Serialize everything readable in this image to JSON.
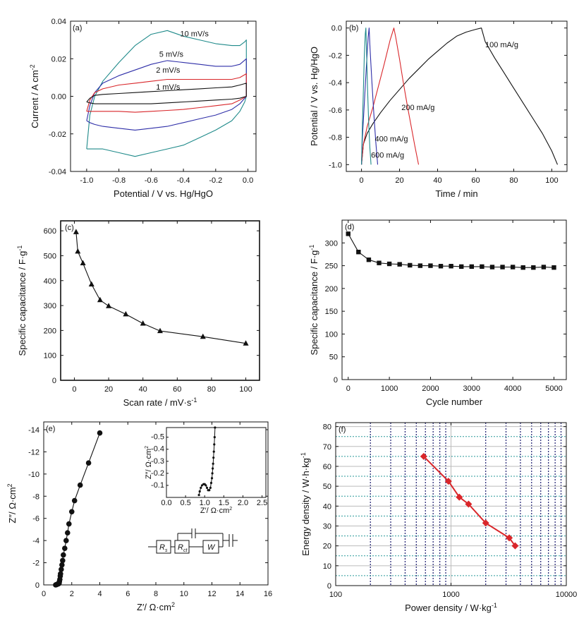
{
  "colors": {
    "black": "#111111",
    "red": "#d9262a",
    "blue": "#2e2ea8",
    "teal": "#1f8a8a",
    "navy": "#1a1a6e",
    "grid_teal": "#2a9a9a",
    "grid_gray": "#bbbbbb"
  },
  "chart_data": [
    {
      "id": "a",
      "type": "line",
      "panel_label": "(a)",
      "xlabel": "Potential / V vs. Hg/HgO",
      "ylabel": "Current / A cm",
      "ylabel_sup": "-2",
      "xlim": [
        -1.1,
        0.05
      ],
      "ylim": [
        -0.04,
        0.04
      ],
      "xticks": [
        -1.0,
        -0.8,
        -0.6,
        -0.4,
        -0.2,
        0.0
      ],
      "xtick_labels": [
        "-1.0",
        "-0.8",
        "-0.6",
        "-0.4",
        "-0.2",
        "0.0"
      ],
      "yticks": [
        -0.04,
        -0.02,
        0.0,
        0.02,
        0.04
      ],
      "ytick_labels": [
        "-0.04",
        "-0.02",
        "0.00",
        "0.02",
        "0.04"
      ],
      "series": [
        {
          "name": "10 mV/s",
          "color": "teal",
          "label_at": [
            -0.42,
            0.032
          ],
          "x": [
            -1.0,
            -0.98,
            -0.95,
            -0.9,
            -0.8,
            -0.7,
            -0.6,
            -0.5,
            -0.4,
            -0.3,
            -0.2,
            -0.1,
            -0.05,
            -0.02,
            -0.01,
            -0.01,
            -0.02,
            -0.05,
            -0.1,
            -0.2,
            -0.3,
            -0.4,
            -0.5,
            -0.6,
            -0.7,
            -0.8,
            -0.9,
            -0.95,
            -0.98,
            -1.0
          ],
          "y": [
            -0.028,
            -0.01,
            0.0,
            0.008,
            0.018,
            0.027,
            0.033,
            0.035,
            0.032,
            0.03,
            0.028,
            0.027,
            0.027,
            0.029,
            0.03,
            0.0,
            -0.003,
            -0.008,
            -0.013,
            -0.018,
            -0.022,
            -0.026,
            -0.028,
            -0.03,
            -0.032,
            -0.03,
            -0.028,
            -0.028,
            -0.028,
            -0.028
          ]
        },
        {
          "name": "5 mV/s",
          "color": "blue",
          "label_at": [
            -0.55,
            0.021
          ],
          "x": [
            -1.0,
            -0.98,
            -0.95,
            -0.9,
            -0.8,
            -0.7,
            -0.6,
            -0.5,
            -0.4,
            -0.3,
            -0.2,
            -0.1,
            -0.05,
            -0.01,
            -0.01,
            -0.05,
            -0.1,
            -0.2,
            -0.3,
            -0.4,
            -0.5,
            -0.6,
            -0.7,
            -0.8,
            -0.9,
            -0.95,
            -0.98,
            -1.0
          ],
          "y": [
            -0.013,
            -0.005,
            0.002,
            0.007,
            0.011,
            0.014,
            0.017,
            0.019,
            0.018,
            0.017,
            0.016,
            0.016,
            0.017,
            0.02,
            0.0,
            -0.004,
            -0.007,
            -0.01,
            -0.012,
            -0.014,
            -0.016,
            -0.017,
            -0.018,
            -0.017,
            -0.016,
            -0.015,
            -0.014,
            -0.013
          ]
        },
        {
          "name": "2 mV/s",
          "color": "red",
          "label_at": [
            -0.57,
            0.0125
          ],
          "x": [
            -1.0,
            -0.98,
            -0.95,
            -0.9,
            -0.8,
            -0.7,
            -0.6,
            -0.5,
            -0.4,
            -0.3,
            -0.2,
            -0.1,
            -0.05,
            -0.01,
            -0.01,
            -0.05,
            -0.1,
            -0.2,
            -0.3,
            -0.4,
            -0.5,
            -0.6,
            -0.7,
            -0.8,
            -0.9,
            -0.95,
            -0.98,
            -1.0
          ],
          "y": [
            -0.008,
            -0.002,
            0.002,
            0.004,
            0.006,
            0.007,
            0.008,
            0.009,
            0.009,
            0.009,
            0.009,
            0.009,
            0.01,
            0.012,
            0.0,
            -0.002,
            -0.004,
            -0.005,
            -0.006,
            -0.007,
            -0.0075,
            -0.008,
            -0.0085,
            -0.008,
            -0.008,
            -0.008,
            -0.008,
            -0.008
          ]
        },
        {
          "name": "1 mV/s",
          "color": "black",
          "label_at": [
            -0.57,
            0.0035
          ],
          "x": [
            -1.0,
            -0.98,
            -0.95,
            -0.9,
            -0.8,
            -0.7,
            -0.6,
            -0.5,
            -0.4,
            -0.3,
            -0.2,
            -0.1,
            -0.05,
            -0.01,
            -0.01,
            -0.05,
            -0.1,
            -0.2,
            -0.3,
            -0.4,
            -0.5,
            -0.6,
            -0.7,
            -0.8,
            -0.9,
            -0.95,
            -0.98,
            -1.0
          ],
          "y": [
            -0.003,
            -0.001,
            0.0005,
            0.001,
            0.0015,
            0.002,
            0.0025,
            0.003,
            0.0035,
            0.004,
            0.0045,
            0.005,
            0.006,
            0.007,
            0.0,
            -0.001,
            -0.0015,
            -0.002,
            -0.0025,
            -0.003,
            -0.0035,
            -0.004,
            -0.004,
            -0.004,
            -0.004,
            -0.004,
            -0.0035,
            -0.003
          ]
        }
      ]
    },
    {
      "id": "b",
      "type": "line",
      "panel_label": "(b)",
      "xlabel": "Time / min",
      "ylabel": "Potential / V vs. Hg/HgO",
      "xlim": [
        -8,
        108
      ],
      "ylim": [
        -1.05,
        0.05
      ],
      "xticks": [
        0,
        20,
        40,
        60,
        80,
        100
      ],
      "xtick_labels": [
        "0",
        "20",
        "40",
        "60",
        "80",
        "100"
      ],
      "yticks": [
        -1.0,
        -0.8,
        -0.6,
        -0.4,
        -0.2,
        0.0
      ],
      "ytick_labels": [
        "-1.0",
        "-0.8",
        "-0.6",
        "-0.4",
        "-0.2",
        "0.0"
      ],
      "series": [
        {
          "name": "100 mA/g",
          "color": "black",
          "label_at": [
            65,
            -0.14
          ],
          "x": [
            0,
            1,
            3,
            6,
            10,
            15,
            20,
            25,
            30,
            35,
            40,
            45,
            50,
            55,
            60,
            63,
            65,
            70,
            75,
            80,
            85,
            90,
            95,
            100,
            103
          ],
          "y": [
            -1.0,
            -0.85,
            -0.77,
            -0.7,
            -0.62,
            -0.53,
            -0.45,
            -0.37,
            -0.3,
            -0.23,
            -0.17,
            -0.11,
            -0.06,
            -0.03,
            -0.01,
            0.0,
            -0.1,
            -0.22,
            -0.33,
            -0.44,
            -0.55,
            -0.66,
            -0.77,
            -0.9,
            -1.0
          ]
        },
        {
          "name": "200 mA/g",
          "color": "red",
          "label_at": [
            21,
            -0.6
          ],
          "x": [
            0,
            1,
            3,
            6,
            9,
            12,
            15,
            17,
            18,
            20,
            22,
            24,
            26,
            28,
            30
          ],
          "y": [
            -1.0,
            -0.85,
            -0.72,
            -0.58,
            -0.42,
            -0.26,
            -0.09,
            0.0,
            -0.07,
            -0.23,
            -0.4,
            -0.56,
            -0.71,
            -0.86,
            -1.0
          ]
        },
        {
          "name": "400 mA/g",
          "color": "blue",
          "label_at": [
            7,
            -0.83
          ],
          "x": [
            0,
            0.5,
            1.5,
            2.5,
            3.5,
            4.0,
            4.5,
            5.5,
            6.5,
            7.5,
            8.5
          ],
          "y": [
            -1.0,
            -0.8,
            -0.55,
            -0.3,
            -0.07,
            0.0,
            -0.15,
            -0.4,
            -0.63,
            -0.83,
            -1.0
          ]
        },
        {
          "name": "600 mA/g",
          "color": "teal",
          "label_at": [
            5,
            -0.95
          ],
          "x": [
            0,
            0.5,
            1.0,
            1.5,
            2.0,
            2.3,
            2.7,
            3.2,
            3.8,
            4.4,
            5.0
          ],
          "y": [
            -1.0,
            -0.7,
            -0.45,
            -0.2,
            -0.04,
            0.0,
            -0.2,
            -0.45,
            -0.7,
            -0.88,
            -1.0
          ]
        }
      ]
    },
    {
      "id": "c",
      "type": "line",
      "panel_label": "(c)",
      "xlabel": "Scan rate / mV·s",
      "xlabel_sup": "-1",
      "ylabel": "Specific capacitance / F·g",
      "ylabel_sup": "-1",
      "xlim": [
        -8,
        108
      ],
      "ylim": [
        0,
        640
      ],
      "xticks": [
        0,
        20,
        40,
        60,
        80,
        100
      ],
      "xtick_labels": [
        "0",
        "20",
        "40",
        "60",
        "80",
        "100"
      ],
      "yticks": [
        0,
        100,
        200,
        300,
        400,
        500,
        600
      ],
      "ytick_labels": [
        "0",
        "100",
        "200",
        "300",
        "400",
        "500",
        "600"
      ],
      "marker": "triangle",
      "series": [
        {
          "name": "",
          "color": "black",
          "x": [
            1,
            2,
            5,
            10,
            15,
            20,
            30,
            40,
            50,
            75,
            100
          ],
          "y": [
            595,
            517,
            470,
            385,
            322,
            298,
            265,
            228,
            198,
            175,
            148
          ]
        }
      ]
    },
    {
      "id": "d",
      "type": "line",
      "panel_label": "(d)",
      "xlabel": "Cycle number",
      "ylabel": "Specific capacitance / F·g",
      "ylabel_sup": "-1",
      "xlim": [
        -150,
        5300
      ],
      "ylim": [
        0,
        350
      ],
      "xticks": [
        0,
        1000,
        2000,
        3000,
        4000,
        5000
      ],
      "xtick_labels": [
        "0",
        "1000",
        "2000",
        "3000",
        "4000",
        "5000"
      ],
      "yticks": [
        0,
        50,
        100,
        150,
        200,
        250,
        300
      ],
      "ytick_labels": [
        "0",
        "50",
        "100",
        "150",
        "200",
        "250",
        "300"
      ],
      "marker": "square",
      "series": [
        {
          "name": "",
          "color": "black",
          "x": [
            0,
            250,
            500,
            750,
            1000,
            1250,
            1500,
            1750,
            2000,
            2250,
            2500,
            2750,
            3000,
            3250,
            3500,
            3750,
            4000,
            4250,
            4500,
            4750,
            5000
          ],
          "y": [
            320,
            280,
            263,
            256,
            254,
            253,
            251,
            250,
            250,
            249,
            249,
            248,
            248,
            248,
            247,
            247,
            247,
            246,
            246,
            247,
            246
          ]
        }
      ]
    },
    {
      "id": "e",
      "type": "scatter",
      "panel_label": "(e)",
      "xlabel": "Z′/ Ω·cm",
      "xlabel_sup": "2",
      "ylabel": "Z″/ Ω·cm",
      "ylabel_sup": "2",
      "xlim": [
        0,
        16
      ],
      "ylim": [
        0,
        -14.7
      ],
      "xticks": [
        0,
        2,
        4,
        6,
        8,
        10,
        12,
        14,
        16
      ],
      "xtick_labels": [
        "0",
        "2",
        "4",
        "6",
        "8",
        "10",
        "12",
        "14",
        "16"
      ],
      "yticks": [
        0,
        -2,
        -4,
        -6,
        -8,
        -10,
        -12,
        -14
      ],
      "ytick_labels": [
        "0",
        "-2",
        "-4",
        "-6",
        "-8",
        "-10",
        "-12",
        "-14"
      ],
      "marker": "circle",
      "series": [
        {
          "name": "",
          "color": "black",
          "x": [
            0.85,
            0.9,
            0.95,
            1.0,
            1.05,
            1.1,
            1.12,
            1.15,
            1.18,
            1.2,
            1.25,
            1.3,
            1.35,
            1.4,
            1.5,
            1.6,
            1.7,
            1.8,
            2.0,
            2.2,
            2.6,
            3.2,
            4.0
          ],
          "y": [
            0.0,
            -0.02,
            -0.05,
            -0.08,
            -0.1,
            -0.15,
            -0.3,
            -0.5,
            -0.8,
            -1.0,
            -1.4,
            -1.8,
            -2.2,
            -2.7,
            -3.3,
            -4.0,
            -4.7,
            -5.5,
            -6.6,
            -7.6,
            -9.0,
            -11.0,
            -13.7
          ]
        }
      ],
      "inset": {
        "xlabel": "Z′/ Ω·cm",
        "xlabel_sup": "2",
        "ylabel": "Z″/ Ω·cm",
        "ylabel_sup": "2",
        "xlim": [
          0,
          2.6
        ],
        "ylim": [
          0,
          -0.58
        ],
        "xticks": [
          0.0,
          0.5,
          1.0,
          1.5,
          2.0,
          2.5
        ],
        "xtick_labels": [
          "0.0",
          "0.5",
          "1.0",
          "1.5",
          "2.0",
          "2.5"
        ],
        "yticks": [
          -0.1,
          -0.2,
          -0.3,
          -0.4,
          -0.5
        ],
        "ytick_labels": [
          "-0.1",
          "-0.2",
          "-0.3",
          "-0.4",
          "-0.5"
        ],
        "x": [
          0.85,
          0.87,
          0.9,
          0.93,
          0.97,
          1.0,
          1.03,
          1.06,
          1.09,
          1.12,
          1.15,
          1.17,
          1.19,
          1.2,
          1.21,
          1.22,
          1.23,
          1.24,
          1.25,
          1.26,
          1.27
        ],
        "y": [
          -0.02,
          -0.05,
          -0.08,
          -0.1,
          -0.11,
          -0.11,
          -0.1,
          -0.08,
          -0.06,
          -0.06,
          -0.08,
          -0.12,
          -0.16,
          -0.2,
          -0.24,
          -0.28,
          -0.33,
          -0.38,
          -0.44,
          -0.5,
          -0.58
        ]
      },
      "circuit": {
        "labels": [
          "R",
          "R",
          "W"
        ],
        "subscripts": [
          "s",
          "ct",
          ""
        ]
      }
    },
    {
      "id": "f",
      "type": "line",
      "panel_label": "(f)",
      "xlabel": "Power density / W·kg",
      "xlabel_sup": "-1",
      "ylabel": "Energy density / W·h·kg",
      "ylabel_sup": "-1",
      "xscale": "log",
      "xlim": [
        100,
        10000
      ],
      "ylim": [
        0,
        82
      ],
      "grid": true,
      "xticks": [
        100,
        1000,
        10000
      ],
      "xtick_labels": [
        "100",
        "1000",
        "10000"
      ],
      "yticks": [
        0,
        10,
        20,
        30,
        40,
        50,
        60,
        70,
        80
      ],
      "ytick_labels": [
        "0",
        "10",
        "20",
        "30",
        "40",
        "50",
        "60",
        "70",
        "80"
      ],
      "marker": "diamond",
      "series": [
        {
          "name": "",
          "color": "red",
          "x": [
            580,
            950,
            1180,
            1420,
            2000,
            3200,
            3600
          ],
          "y": [
            65,
            52.5,
            44.5,
            41,
            31.5,
            24,
            20
          ]
        }
      ]
    }
  ]
}
